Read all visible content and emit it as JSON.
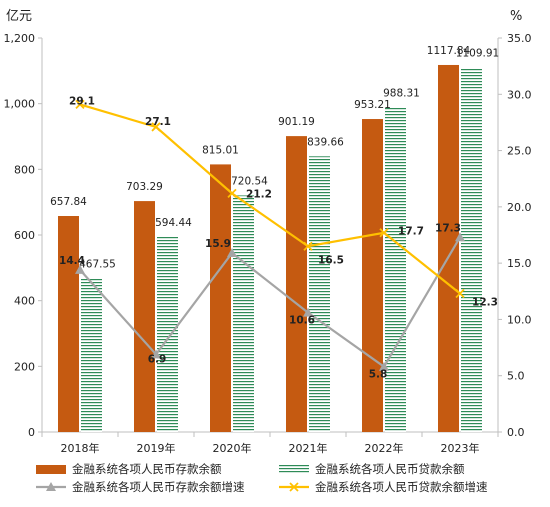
{
  "chart_data": {
    "type": "bar",
    "categories": [
      "2018年",
      "2019年",
      "2020年",
      "2021年",
      "2022年",
      "2023年"
    ],
    "left_unit": "亿元",
    "right_unit": "%",
    "ylim_left": [
      0,
      1200
    ],
    "ylim_right": [
      0,
      35
    ],
    "left_ticks": [
      "0",
      "200",
      "400",
      "600",
      "800",
      "1,000",
      "1,200"
    ],
    "left_tick_values": [
      0,
      200,
      400,
      600,
      800,
      1000,
      1200
    ],
    "right_ticks": [
      "0.0",
      "5.0",
      "10.0",
      "15.0",
      "20.0",
      "25.0",
      "30.0",
      "35.0"
    ],
    "right_tick_values": [
      0,
      5,
      10,
      15,
      20,
      25,
      30,
      35
    ],
    "series": [
      {
        "name": "金融系统各项人民币存款余额",
        "kind": "bar",
        "axis": "left",
        "color": "#C55A11",
        "values": [
          657.84,
          703.29,
          815.01,
          901.19,
          953.21,
          1117.84
        ],
        "labels": [
          "657.84",
          "703.29",
          "815.01",
          "901.19",
          "953.21",
          "1117.84"
        ]
      },
      {
        "name": "金融系统各项人民币贷款余额",
        "kind": "bar",
        "axis": "left",
        "color": "#2E8B57",
        "values": [
          467.55,
          594.44,
          720.54,
          839.66,
          988.31,
          1109.91
        ],
        "labels": [
          "467.55",
          "594.44",
          "720.54",
          "839.66",
          "988.31",
          "1109.91"
        ]
      },
      {
        "name": "金融系统各项人民币存款余额增速",
        "kind": "line",
        "axis": "right",
        "color": "#A5A5A5",
        "marker": "triangle",
        "values": [
          14.4,
          6.9,
          15.9,
          10.6,
          5.8,
          17.3
        ],
        "labels": [
          "14.4",
          "6.9",
          "15.9",
          "10.6",
          "5.8",
          "17.3"
        ]
      },
      {
        "name": "金融系统各项人民币贷款余额增速",
        "kind": "line",
        "axis": "right",
        "color": "#FFC000",
        "marker": "x",
        "values": [
          29.1,
          27.1,
          21.2,
          16.5,
          17.7,
          12.3
        ],
        "labels": [
          "29.1",
          "27.1",
          "21.2",
          "16.5",
          "17.7",
          "12.3"
        ]
      }
    ],
    "grid": false,
    "legend_position": "bottom"
  }
}
